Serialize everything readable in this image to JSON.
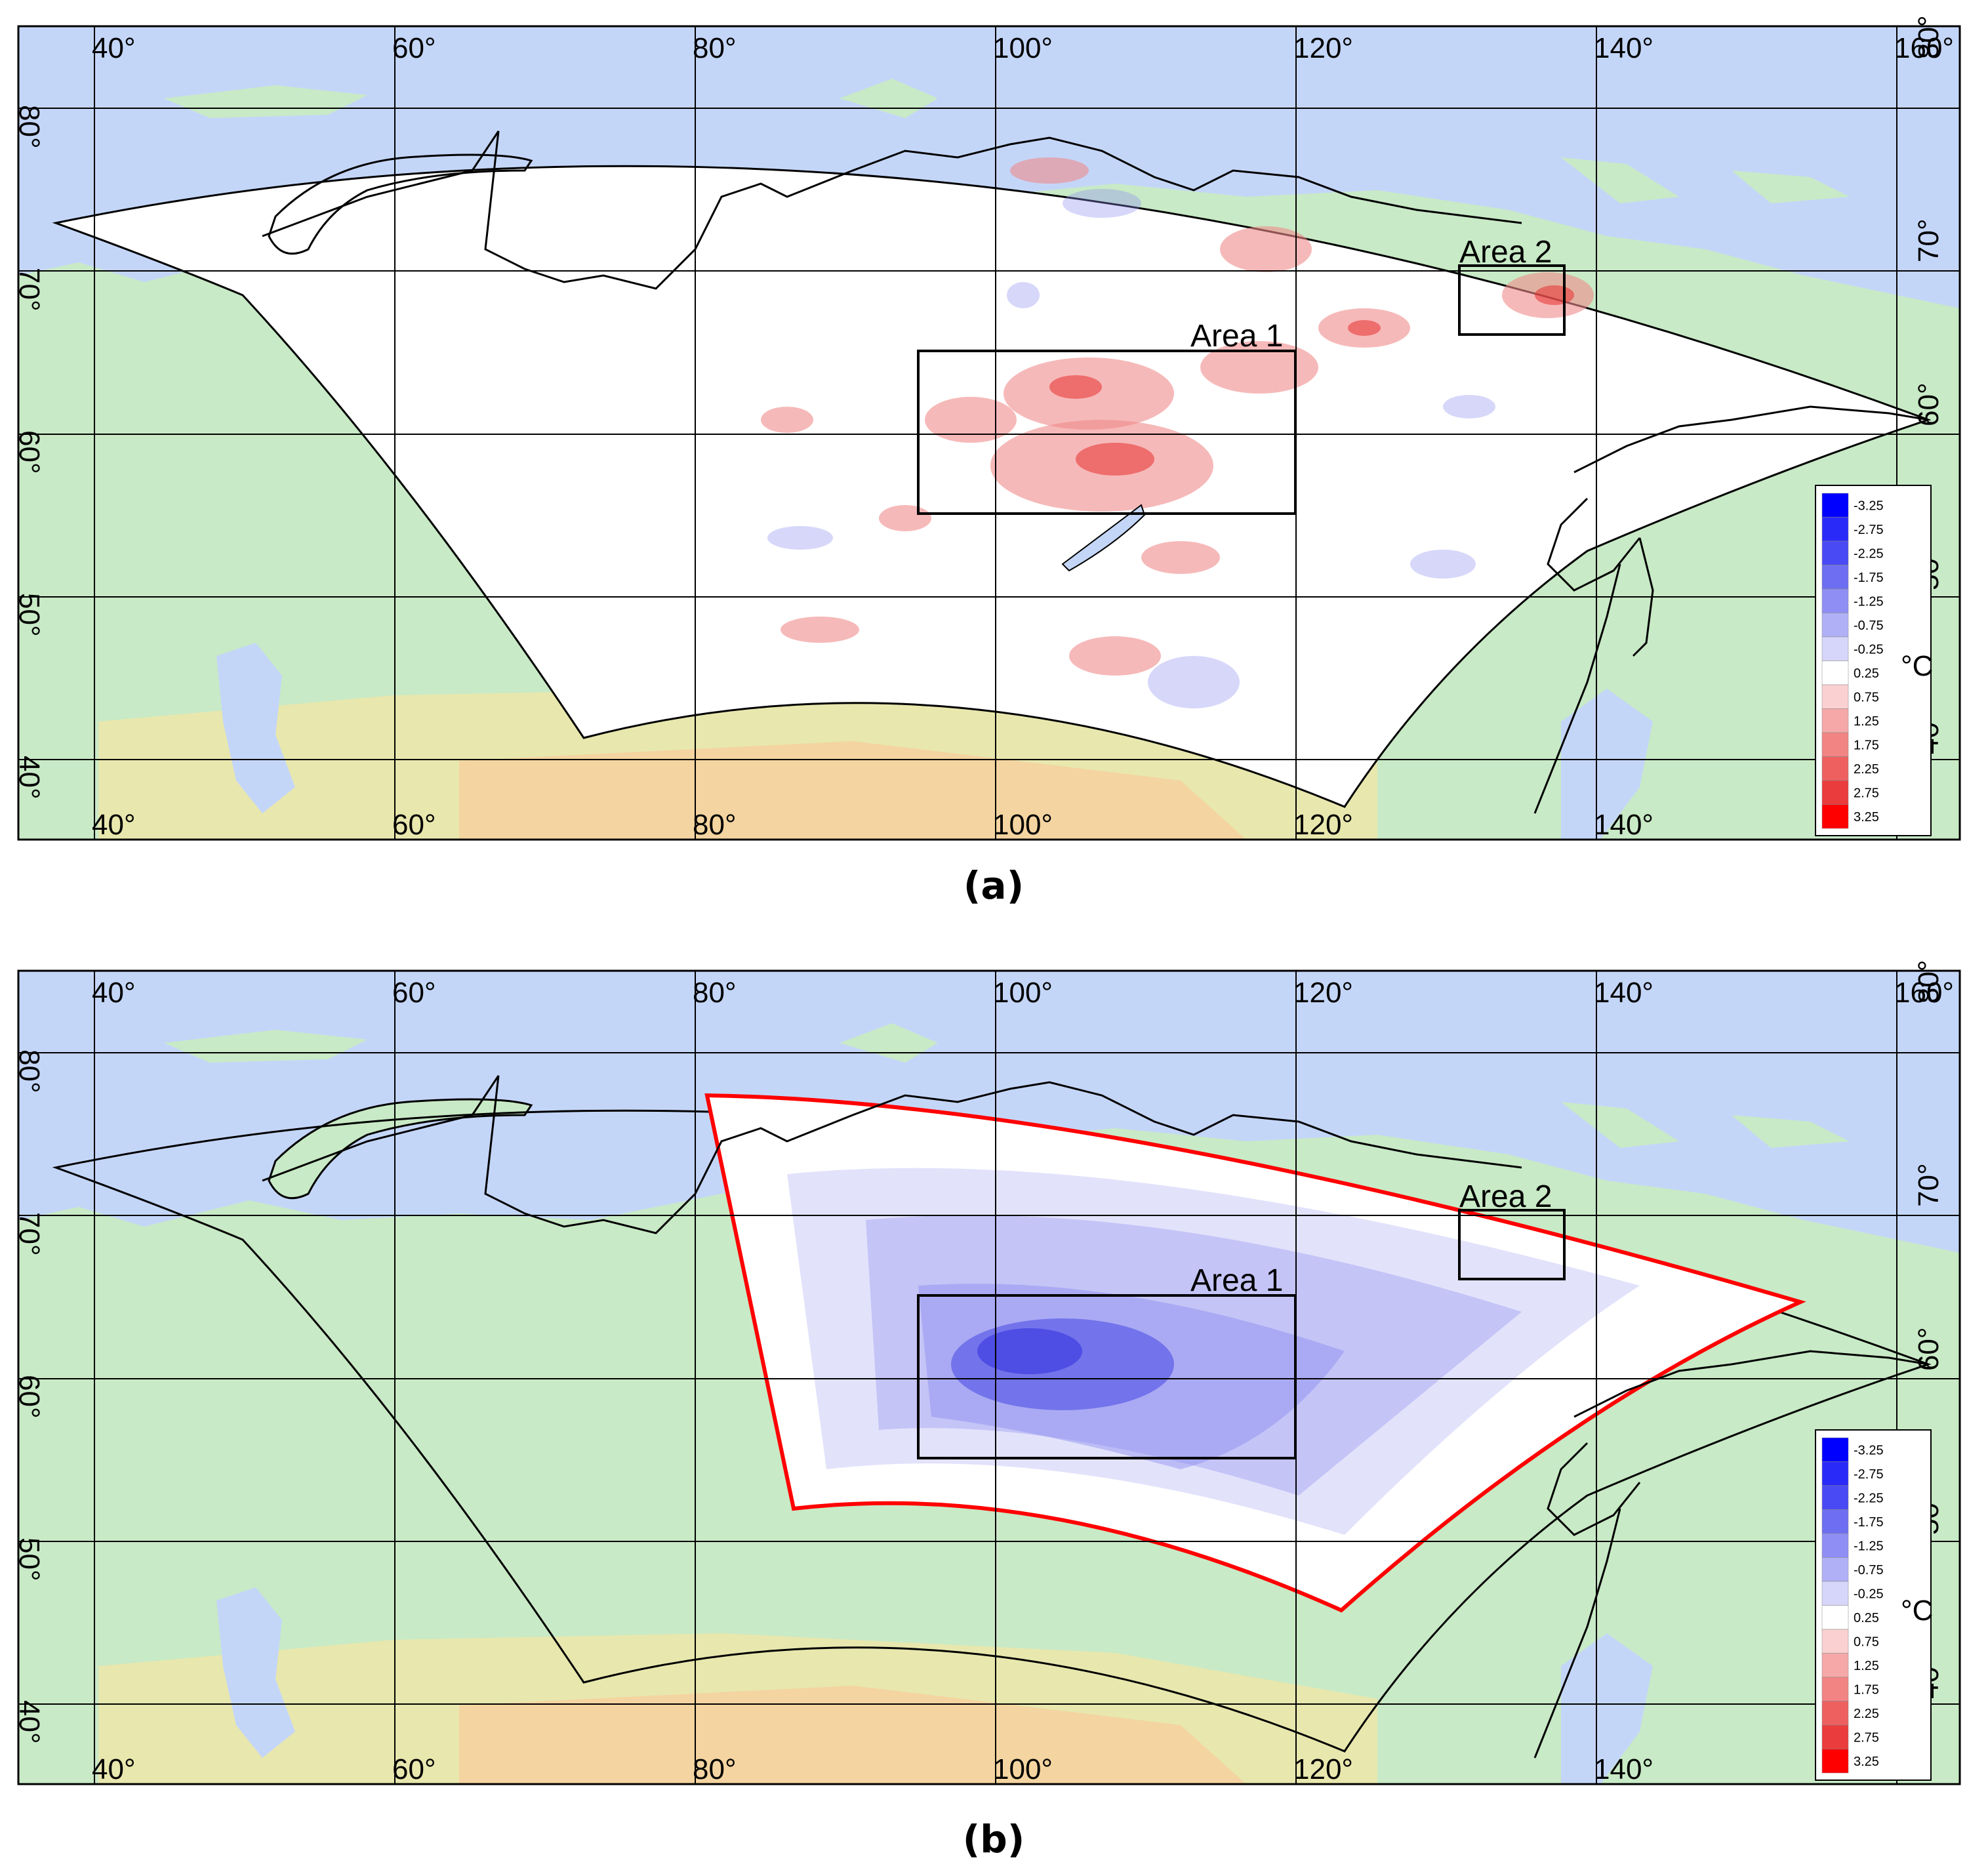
{
  "colors": {
    "ocean": "#c4d6f8",
    "land": "#c8eac6",
    "land_dry": "#f0e6a8",
    "land_arid": "#f6cf9c",
    "domain_fill": "#ffffff",
    "warm": "#f08a8a",
    "warm_strong": "#e83030",
    "cool": "#8c8cf0",
    "cool_strong": "#3030e0",
    "inner_domain": "#ff0000"
  },
  "map": {
    "lon_ticks_top": [
      "40°",
      "60°",
      "80°",
      "100°",
      "120°",
      "140°",
      "160°"
    ],
    "lon_ticks_bottom": [
      "40°",
      "60°",
      "80°",
      "100°",
      "120°",
      "140°"
    ],
    "lat_ticks_left": [
      "80°",
      "70°",
      "60°",
      "50°",
      "40°"
    ],
    "lat_ticks_right": [
      "80°",
      "70°",
      "60°",
      "50°",
      "40°"
    ]
  },
  "legend": {
    "unit": "°C",
    "values": [
      "-3.25",
      "-2.75",
      "-2.25",
      "-1.75",
      "-1.25",
      "-0.75",
      "-0.25",
      "0.25",
      "0.75",
      "1.25",
      "1.75",
      "2.25",
      "2.75",
      "3.25"
    ],
    "swatch_colors": [
      "#0000ff",
      "#2a2af8",
      "#4a4af4",
      "#6e6ef2",
      "#8e8ef4",
      "#b0b0f6",
      "#d6d6fa",
      "#ffffff",
      "#fad0d0",
      "#f6a8a8",
      "#f28484",
      "#ee6060",
      "#ea3c3c",
      "#ff0000"
    ]
  },
  "panels": [
    {
      "caption": "(a)",
      "area1_label": "Area 1",
      "area2_label": "Area 2"
    },
    {
      "caption": "(b)",
      "area1_label": "Area 1",
      "area2_label": "Area 2"
    }
  ]
}
